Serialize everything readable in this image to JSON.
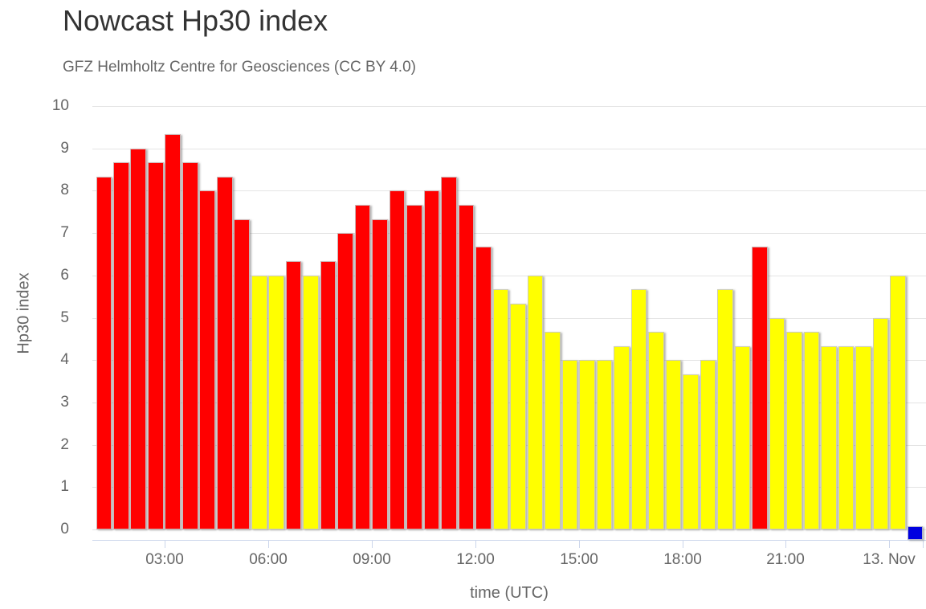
{
  "header": {
    "title": "Nowcast Hp30 index",
    "subtitle": "GFZ Helmholtz Centre for Geosciences (CC BY 4.0)"
  },
  "chart_data": {
    "type": "bar",
    "title": "Nowcast Hp30 index",
    "subtitle": "GFZ Helmholtz Centre for Geosciences (CC BY 4.0)",
    "xlabel": "time (UTC)",
    "ylabel": "Hp30 index",
    "ylim": [
      0,
      10
    ],
    "grid": true,
    "legend": "none",
    "y_ticks": [
      "0",
      "1",
      "2",
      "3",
      "4",
      "5",
      "6",
      "7",
      "8",
      "9",
      "10"
    ],
    "x_ticks": [
      "03:00",
      "06:00",
      "09:00",
      "12:00",
      "15:00",
      "18:00",
      "21:00",
      "13. Nov"
    ],
    "colors": {
      "storm_red": "#ff0000",
      "active_yellow": "#ffff00",
      "latest_blue": "#0000e0"
    },
    "series": [
      {
        "name": "Hp30",
        "points": [
          {
            "t": "01:00",
            "v": 8.33,
            "c": "red"
          },
          {
            "t": "01:30",
            "v": 8.67,
            "c": "red"
          },
          {
            "t": "02:00",
            "v": 9.0,
            "c": "red"
          },
          {
            "t": "02:30",
            "v": 8.67,
            "c": "red"
          },
          {
            "t": "03:00",
            "v": 9.33,
            "c": "red"
          },
          {
            "t": "03:30",
            "v": 8.67,
            "c": "red"
          },
          {
            "t": "04:00",
            "v": 8.0,
            "c": "red"
          },
          {
            "t": "04:30",
            "v": 8.33,
            "c": "red"
          },
          {
            "t": "05:00",
            "v": 7.33,
            "c": "red"
          },
          {
            "t": "05:30",
            "v": 6.0,
            "c": "yellow"
          },
          {
            "t": "06:00",
            "v": 6.0,
            "c": "yellow"
          },
          {
            "t": "06:30",
            "v": 6.33,
            "c": "red"
          },
          {
            "t": "07:00",
            "v": 6.0,
            "c": "yellow"
          },
          {
            "t": "07:30",
            "v": 6.33,
            "c": "red"
          },
          {
            "t": "08:00",
            "v": 7.0,
            "c": "red"
          },
          {
            "t": "08:30",
            "v": 7.67,
            "c": "red"
          },
          {
            "t": "09:00",
            "v": 7.33,
            "c": "red"
          },
          {
            "t": "09:30",
            "v": 8.0,
            "c": "red"
          },
          {
            "t": "10:00",
            "v": 7.67,
            "c": "red"
          },
          {
            "t": "10:30",
            "v": 8.0,
            "c": "red"
          },
          {
            "t": "11:00",
            "v": 8.33,
            "c": "red"
          },
          {
            "t": "11:30",
            "v": 7.67,
            "c": "red"
          },
          {
            "t": "12:00",
            "v": 6.67,
            "c": "red"
          },
          {
            "t": "12:30",
            "v": 5.67,
            "c": "yellow"
          },
          {
            "t": "13:00",
            "v": 5.33,
            "c": "yellow"
          },
          {
            "t": "13:30",
            "v": 6.0,
            "c": "yellow"
          },
          {
            "t": "14:00",
            "v": 4.67,
            "c": "yellow"
          },
          {
            "t": "14:30",
            "v": 4.0,
            "c": "yellow"
          },
          {
            "t": "15:00",
            "v": 4.0,
            "c": "yellow"
          },
          {
            "t": "15:30",
            "v": 4.0,
            "c": "yellow"
          },
          {
            "t": "16:00",
            "v": 4.33,
            "c": "yellow"
          },
          {
            "t": "16:30",
            "v": 5.67,
            "c": "yellow"
          },
          {
            "t": "17:00",
            "v": 4.67,
            "c": "yellow"
          },
          {
            "t": "17:30",
            "v": 4.0,
            "c": "yellow"
          },
          {
            "t": "18:00",
            "v": 3.67,
            "c": "yellow"
          },
          {
            "t": "18:30",
            "v": 4.0,
            "c": "yellow"
          },
          {
            "t": "19:00",
            "v": 5.67,
            "c": "yellow"
          },
          {
            "t": "19:30",
            "v": 4.33,
            "c": "yellow"
          },
          {
            "t": "20:00",
            "v": 6.67,
            "c": "red"
          },
          {
            "t": "20:30",
            "v": 5.0,
            "c": "yellow"
          },
          {
            "t": "21:00",
            "v": 4.67,
            "c": "yellow"
          },
          {
            "t": "21:30",
            "v": 4.67,
            "c": "yellow"
          },
          {
            "t": "22:00",
            "v": 4.33,
            "c": "yellow"
          },
          {
            "t": "22:30",
            "v": 4.33,
            "c": "yellow"
          },
          {
            "t": "23:00",
            "v": 4.33,
            "c": "yellow"
          },
          {
            "t": "23:30",
            "v": 5.0,
            "c": "yellow"
          },
          {
            "t": "00:00",
            "v": 6.0,
            "c": "yellow"
          },
          {
            "t": "00:30",
            "v": 0.33,
            "c": "blue"
          }
        ]
      }
    ]
  }
}
